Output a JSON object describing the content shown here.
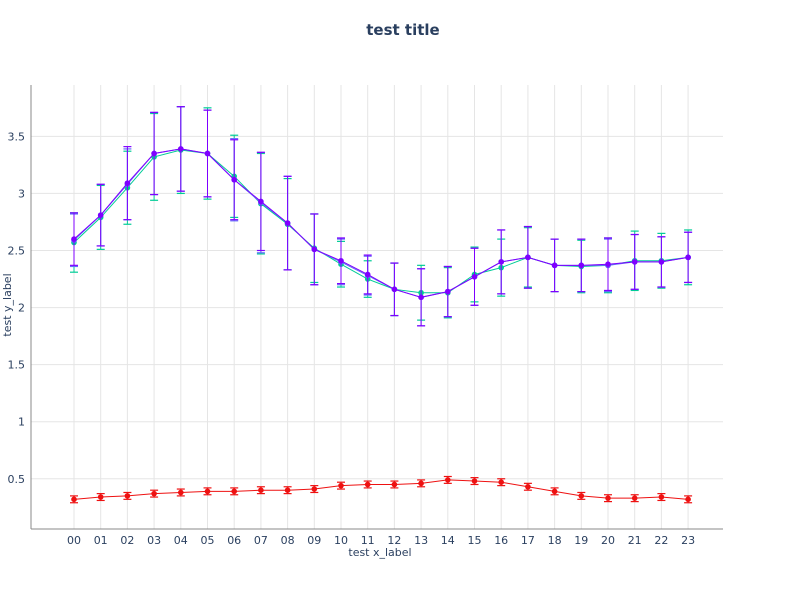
{
  "chart_data": {
    "type": "line",
    "title": "test title",
    "xlabel": "test x_label",
    "ylabel": "test y_label",
    "categories": [
      "00",
      "01",
      "02",
      "03",
      "04",
      "05",
      "06",
      "07",
      "08",
      "09",
      "10",
      "11",
      "12",
      "13",
      "14",
      "15",
      "16",
      "17",
      "18",
      "19",
      "20",
      "21",
      "22",
      "23"
    ],
    "ylim": [
      0.06,
      3.95
    ],
    "yticks": [
      0.5,
      1,
      1.5,
      2,
      2.5,
      3,
      3.5
    ],
    "ytick_labels": [
      "0.5",
      "1",
      "1.5",
      "2",
      "2.5",
      "3",
      "3.5"
    ],
    "grid": true,
    "legend": "none",
    "series": [
      {
        "color": "#00cc96",
        "values": [
          2.57,
          2.79,
          3.05,
          3.32,
          3.38,
          3.35,
          3.15,
          2.91,
          2.73,
          2.52,
          2.38,
          2.25,
          2.16,
          2.13,
          2.13,
          2.29,
          2.35,
          2.44,
          2.37,
          2.36,
          2.37,
          2.41,
          2.41,
          2.44
        ],
        "errors": [
          0.26,
          0.28,
          0.32,
          0.38,
          0.38,
          0.4,
          0.36,
          0.44,
          0.4,
          0.3,
          0.2,
          0.16,
          0.23,
          0.24,
          0.22,
          0.24,
          0.25,
          0.26,
          0.23,
          0.23,
          0.24,
          0.26,
          0.24,
          0.24
        ]
      },
      {
        "color": "#636efa",
        "values": [
          2.59,
          2.81,
          3.08,
          3.35,
          3.39,
          3.35,
          3.12,
          2.92,
          2.74,
          2.51,
          2.4,
          2.28,
          2.16,
          2.09,
          2.14,
          2.27,
          2.4,
          2.44,
          2.37,
          2.37,
          2.37,
          2.4,
          2.4,
          2.44
        ],
        "errors": [
          0.23,
          0.27,
          0.31,
          0.36,
          0.37,
          0.38,
          0.36,
          0.44,
          0.41,
          0.31,
          0.2,
          0.17,
          0.23,
          0.25,
          0.22,
          0.25,
          0.28,
          0.27,
          0.23,
          0.23,
          0.23,
          0.24,
          0.22,
          0.22
        ]
      },
      {
        "color": "#7f00ff",
        "values": [
          2.6,
          2.81,
          3.09,
          3.35,
          3.39,
          3.35,
          3.12,
          2.93,
          2.74,
          2.51,
          2.41,
          2.29,
          2.16,
          2.09,
          2.14,
          2.27,
          2.4,
          2.44,
          2.37,
          2.37,
          2.38,
          2.4,
          2.4,
          2.44
        ],
        "errors": [
          0.23,
          0.27,
          0.32,
          0.36,
          0.37,
          0.38,
          0.35,
          0.43,
          0.41,
          0.31,
          0.2,
          0.17,
          0.23,
          0.25,
          0.22,
          0.25,
          0.28,
          0.27,
          0.23,
          0.23,
          0.23,
          0.24,
          0.22,
          0.22
        ]
      },
      {
        "color": "#ee1111",
        "values": [
          0.32,
          0.34,
          0.35,
          0.37,
          0.38,
          0.39,
          0.39,
          0.4,
          0.4,
          0.41,
          0.44,
          0.45,
          0.45,
          0.46,
          0.49,
          0.48,
          0.47,
          0.43,
          0.39,
          0.35,
          0.33,
          0.33,
          0.34,
          0.32
        ],
        "errors": [
          0.03,
          0.03,
          0.03,
          0.03,
          0.03,
          0.03,
          0.03,
          0.03,
          0.03,
          0.03,
          0.03,
          0.03,
          0.03,
          0.03,
          0.03,
          0.03,
          0.03,
          0.03,
          0.03,
          0.03,
          0.03,
          0.03,
          0.03,
          0.03
        ]
      }
    ]
  }
}
